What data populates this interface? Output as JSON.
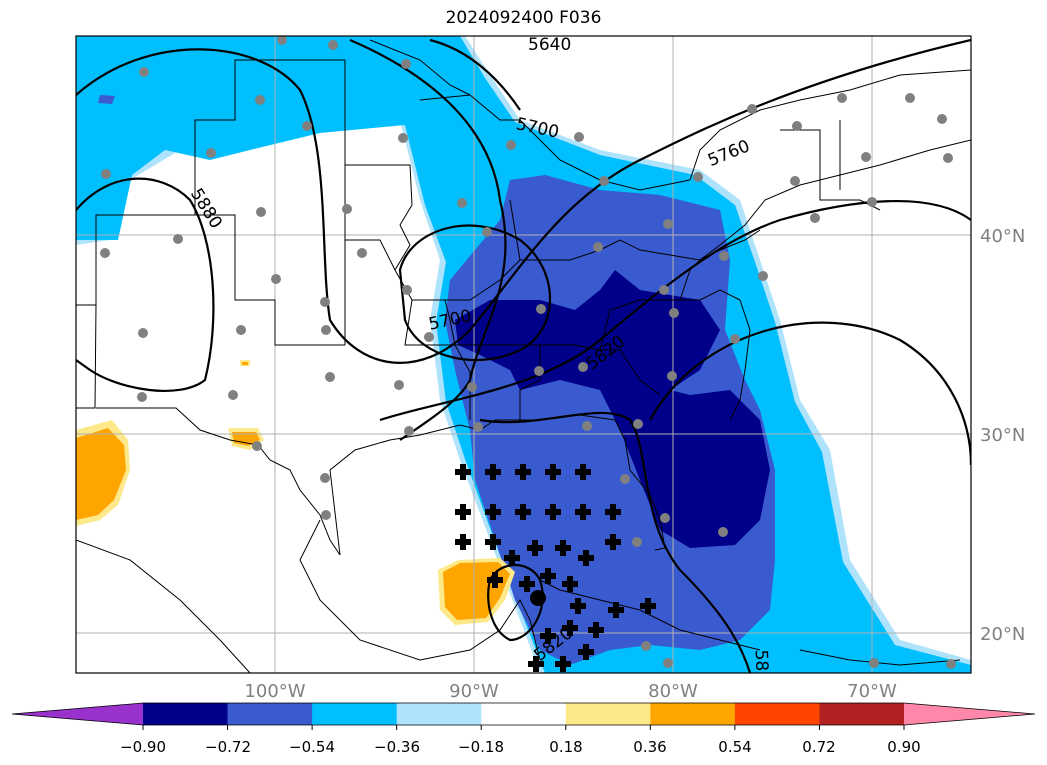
{
  "title": "2024092400 F036",
  "map": {
    "lat_labels": [
      {
        "text": "40°N",
        "lat": 40
      },
      {
        "text": "30°N",
        "lat": 30
      },
      {
        "text": "20°N",
        "lat": 20
      }
    ],
    "lon_labels": [
      {
        "text": "100°W",
        "lon": -100
      },
      {
        "text": "90°W",
        "lon": -90
      },
      {
        "text": "80°W",
        "lon": -80
      },
      {
        "text": "70°W",
        "lon": -70
      }
    ],
    "contour_labels": [
      "5640",
      "5700",
      "5760",
      "5880",
      "5700",
      "5820",
      "5820",
      "58"
    ],
    "colors": {
      "strong_negative": "#00008b",
      "moderate_negative": "#3a5bd0",
      "weak_negative": "#00bfff",
      "faint_negative": "#aee3fb",
      "positive": "#ffa500",
      "faint_positive": "#fde98a",
      "stations": "#808080",
      "markers": "#000000"
    }
  },
  "colorbar": {
    "colors": [
      "#9932cc",
      "#00008b",
      "#3a5bd0",
      "#00bfff",
      "#aee3fb",
      "#ffffff",
      "#fde98a",
      "#ffa500",
      "#ff4500",
      "#b22222",
      "#ff88aa"
    ],
    "tick_labels": [
      "−0.90",
      "−0.72",
      "−0.54",
      "−0.36",
      "−0.18",
      "0.18",
      "0.36",
      "0.54",
      "0.72",
      "0.90"
    ]
  }
}
